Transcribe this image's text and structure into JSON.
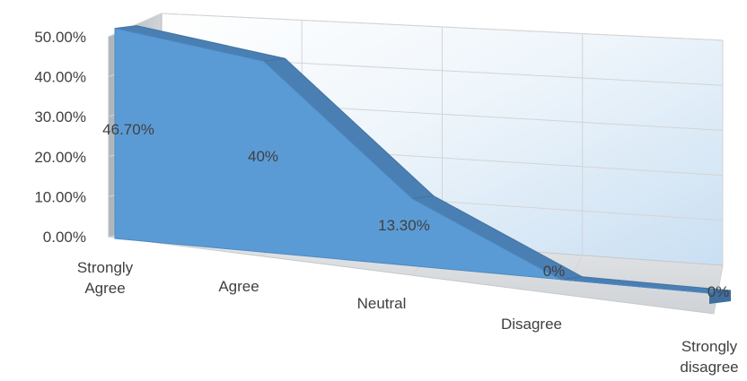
{
  "chart_data": {
    "type": "area",
    "title": "",
    "xlabel": "",
    "ylabel": "",
    "categories": [
      [
        "Strongly",
        "Agree"
      ],
      [
        "Agree"
      ],
      [
        "Neutral"
      ],
      [
        "Disagree"
      ],
      [
        "Strongly",
        "disagree"
      ]
    ],
    "series": [
      {
        "values": [
          46.7,
          40,
          13.3,
          0,
          0
        ],
        "color": "#5b9bd5"
      }
    ],
    "data_labels": [
      "46.70%",
      "40%",
      "13.30%",
      "0%",
      "0%"
    ],
    "y_ticks": [
      "0.00%",
      "10.00%",
      "20.00%",
      "30.00%",
      "40.00%",
      "50.00%"
    ],
    "ylim": [
      0,
      50
    ],
    "grid": true,
    "style": "3d"
  }
}
